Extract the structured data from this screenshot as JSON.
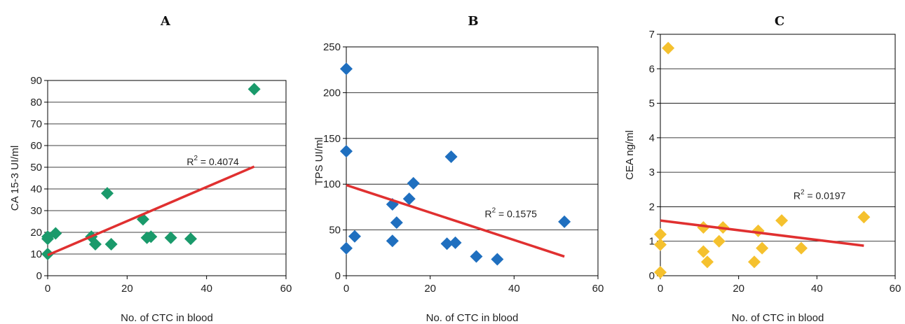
{
  "chart_data": [
    {
      "type": "scatter",
      "title": "A",
      "xlabel": "No. of CTC in blood",
      "ylabel": "CA 15-3  UI/ml",
      "xlim": [
        0,
        60
      ],
      "ylim": [
        0,
        90
      ],
      "xticks": [
        0,
        20,
        40,
        60
      ],
      "yticks": [
        0,
        10,
        20,
        30,
        40,
        50,
        60,
        70,
        80,
        90
      ],
      "grid": "horizontal",
      "marker_color": "#1a9a6b",
      "points": [
        {
          "x": 0,
          "y": 10
        },
        {
          "x": 0,
          "y": 17
        },
        {
          "x": 0,
          "y": 18
        },
        {
          "x": 2,
          "y": 19.5
        },
        {
          "x": 11,
          "y": 18
        },
        {
          "x": 12,
          "y": 14.5
        },
        {
          "x": 15,
          "y": 38
        },
        {
          "x": 16,
          "y": 14.5
        },
        {
          "x": 24,
          "y": 26
        },
        {
          "x": 25,
          "y": 17.5
        },
        {
          "x": 26,
          "y": 18
        },
        {
          "x": 31,
          "y": 17.5
        },
        {
          "x": 36,
          "y": 17
        },
        {
          "x": 52,
          "y": 86
        }
      ],
      "trendline": {
        "x1": 0,
        "y1": 9.5,
        "x2": 52,
        "y2": 50.3,
        "color": "#e03030"
      },
      "annotation": {
        "text": "= 0.4074",
        "label": "R",
        "sup": "2",
        "x": 35,
        "y": 51
      }
    },
    {
      "type": "scatter",
      "title": "B",
      "xlabel": "No. of CTC in blood",
      "ylabel": "TPS  UI/ml",
      "xlim": [
        0,
        60
      ],
      "ylim": [
        0,
        250
      ],
      "xticks": [
        0,
        20,
        40,
        60
      ],
      "yticks": [
        0,
        50,
        100,
        150,
        200,
        250
      ],
      "grid": "horizontal",
      "marker_color": "#1f6fbf",
      "points": [
        {
          "x": 0,
          "y": 226
        },
        {
          "x": 0,
          "y": 136
        },
        {
          "x": 0,
          "y": 30
        },
        {
          "x": 2,
          "y": 43
        },
        {
          "x": 11,
          "y": 78
        },
        {
          "x": 11,
          "y": 38
        },
        {
          "x": 12,
          "y": 58
        },
        {
          "x": 15,
          "y": 84
        },
        {
          "x": 16,
          "y": 101
        },
        {
          "x": 24,
          "y": 35
        },
        {
          "x": 25,
          "y": 130
        },
        {
          "x": 26,
          "y": 36
        },
        {
          "x": 31,
          "y": 21
        },
        {
          "x": 36,
          "y": 18
        },
        {
          "x": 52,
          "y": 59
        }
      ],
      "trendline": {
        "x1": 0,
        "y1": 99,
        "x2": 52,
        "y2": 21,
        "color": "#e03030"
      },
      "annotation": {
        "text": "= 0.1575",
        "label": "R",
        "sup": "2",
        "x": 33,
        "y": 64
      }
    },
    {
      "type": "scatter",
      "title": "C",
      "xlabel": "No. of CTC in blood",
      "ylabel": "CEA  ng/ml",
      "xlim": [
        0,
        60
      ],
      "ylim": [
        0,
        7
      ],
      "xticks": [
        0,
        20,
        40,
        60
      ],
      "yticks": [
        0,
        1,
        2,
        3,
        4,
        5,
        6,
        7
      ],
      "grid": "horizontal",
      "marker_color": "#f5c12e",
      "points": [
        {
          "x": 0,
          "y": 0.1
        },
        {
          "x": 0,
          "y": 0.9
        },
        {
          "x": 0,
          "y": 1.2
        },
        {
          "x": 2,
          "y": 6.6
        },
        {
          "x": 11,
          "y": 1.4
        },
        {
          "x": 11,
          "y": 0.7
        },
        {
          "x": 12,
          "y": 0.4
        },
        {
          "x": 15,
          "y": 1.0
        },
        {
          "x": 16,
          "y": 1.4
        },
        {
          "x": 24,
          "y": 0.4
        },
        {
          "x": 25,
          "y": 1.3
        },
        {
          "x": 26,
          "y": 0.8
        },
        {
          "x": 31,
          "y": 1.6
        },
        {
          "x": 36,
          "y": 0.8
        },
        {
          "x": 52,
          "y": 1.7
        }
      ],
      "trendline": {
        "x1": 0,
        "y1": 1.6,
        "x2": 52,
        "y2": 0.87,
        "color": "#e03030"
      },
      "annotation": {
        "text": "= 0.0197",
        "label": "R",
        "sup": "2",
        "x": 34,
        "y": 2.22
      }
    }
  ]
}
